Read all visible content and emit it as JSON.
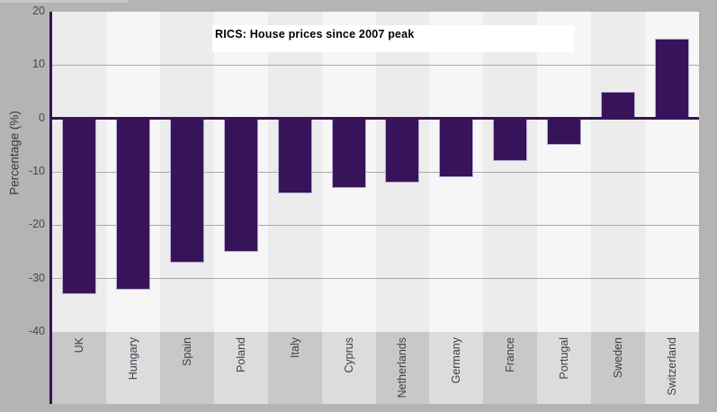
{
  "window": {
    "background": "#b4b4b4"
  },
  "chart_data": {
    "type": "bar",
    "title": "RICS: House prices since 2007 peak",
    "ylabel": "Percentage (%)",
    "xlabel": "",
    "categories": [
      "UK",
      "Hungary",
      "Spain",
      "Poland",
      "Italy",
      "Cyprus",
      "Netherlands",
      "Germany",
      "France",
      "Portugal",
      "Sweden",
      "Switzerland"
    ],
    "values": [
      -33,
      -32,
      -27,
      -25,
      -14,
      -13,
      -12,
      -11,
      -8,
      -5,
      5,
      15
    ],
    "ylim": [
      -40,
      20
    ],
    "yticks": [
      20,
      10,
      0,
      -10,
      -20,
      -30,
      -40
    ],
    "grid": true,
    "legend": false,
    "colors": {
      "bar": "#371359",
      "bar_border": "#b7abd0",
      "axis": "#371359",
      "gridline": "#a9a9a9",
      "plot_band_dark": "#ececec",
      "plot_band_light": "#f6f6f6",
      "label_band_dark": "#c8c8c8",
      "label_band_light": "#dcdcdc",
      "title_background": "#ffffff",
      "tick_text": "#474747",
      "category_text": "#39414c"
    }
  }
}
